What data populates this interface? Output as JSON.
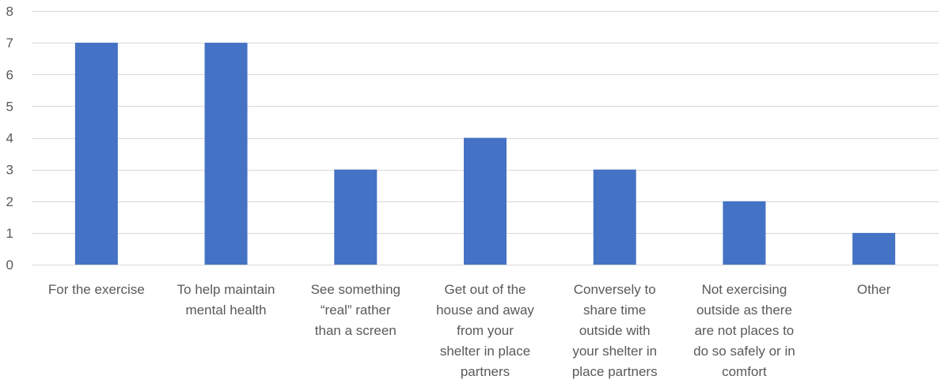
{
  "colors": {
    "bar": "#4472c4",
    "grid": "#d9d9d9",
    "text": "#595959"
  },
  "chart_data": {
    "type": "bar",
    "title": "",
    "xlabel": "",
    "ylabel": "",
    "ylim": [
      0,
      8
    ],
    "yticks": [
      0,
      1,
      2,
      3,
      4,
      5,
      6,
      7,
      8
    ],
    "grid": true,
    "legend": "none",
    "categories": [
      "For the exercise",
      "To help maintain mental health",
      "See something “real” rather than a screen",
      "Get out of the house and away from your shelter in place partners",
      "Conversely to share time outside with your shelter in place partners",
      "Not exercising outside as there are not places to do so safely or in comfort",
      "Other"
    ],
    "category_label_lines": [
      [
        "For the exercise"
      ],
      [
        "To help maintain",
        "mental health"
      ],
      [
        "See something",
        "“real” rather",
        "than a screen"
      ],
      [
        "Get out of the",
        "house and away",
        "from your",
        "shelter in place",
        "partners"
      ],
      [
        "Conversely to",
        "share time",
        "outside with",
        "your shelter in",
        "place partners"
      ],
      [
        "Not exercising",
        "outside as there",
        "are not places to",
        "do so safely or in",
        "comfort"
      ],
      [
        "Other"
      ]
    ],
    "values": [
      7,
      7,
      3,
      4,
      3,
      2,
      1
    ]
  }
}
